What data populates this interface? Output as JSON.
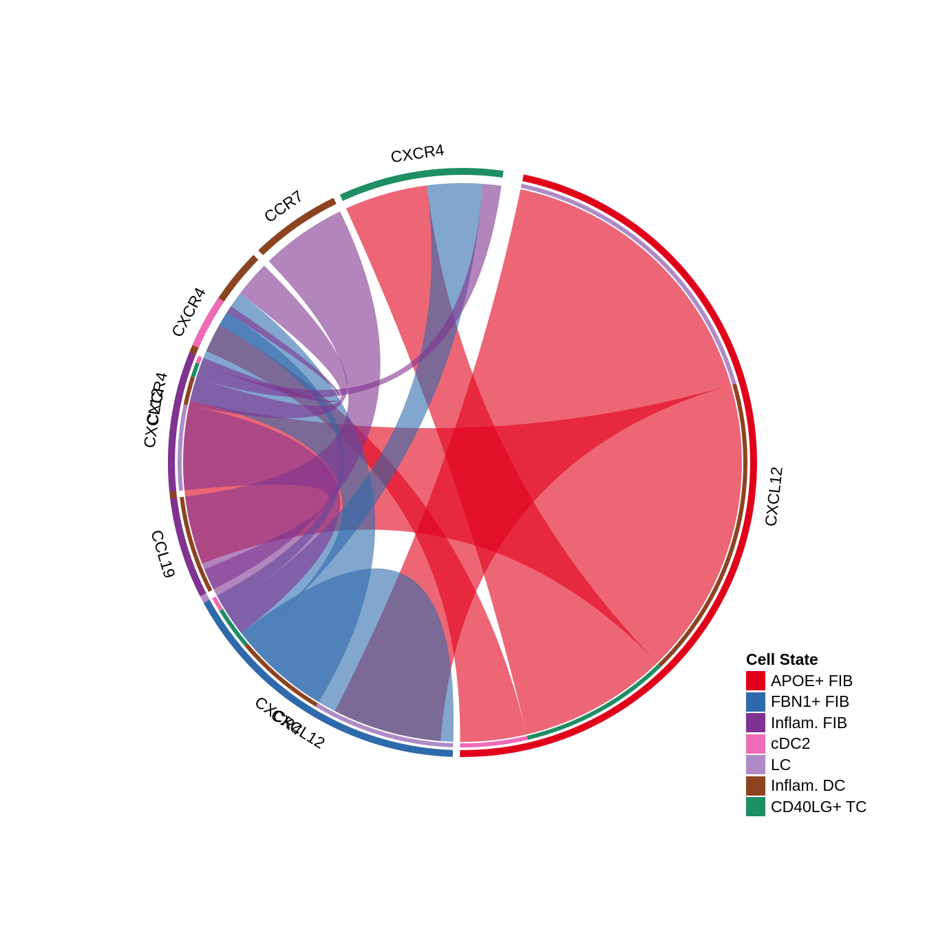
{
  "chart_data": {
    "type": "chord",
    "title": "",
    "legend": {
      "title": "Cell State",
      "placement": "bottom-right",
      "entries": [
        {
          "name": "APOE+ FIB",
          "color": "#E1001A"
        },
        {
          "name": "FBN1+ FIB",
          "color": "#2E6AAB"
        },
        {
          "name": "Inflam. FIB",
          "color": "#7F3390"
        },
        {
          "name": "cDC2",
          "color": "#F06BB5"
        },
        {
          "name": "LC",
          "color": "#AE8BC6"
        },
        {
          "name": "Inflam. DC",
          "color": "#8C4420"
        },
        {
          "name": "CD40LG+ TC",
          "color": "#1E8E63"
        }
      ]
    },
    "sectors": [
      {
        "id": "lc_cxcr4",
        "label": "CXCR4",
        "cell_state": "LC",
        "start_deg": 94.5,
        "end_deg": 157.5
      },
      {
        "id": "dc_cxcr4",
        "label": "CXCR4",
        "cell_state": "Inflam. DC",
        "start_deg": 158.8,
        "end_deg": 224.8
      },
      {
        "id": "dc_ccr7",
        "label": "CCR7",
        "cell_state": "Inflam. DC",
        "start_deg": 226.1,
        "end_deg": 244.0
      },
      {
        "id": "tc_cxcr4",
        "label": "CXCR4",
        "cell_state": "CD40LG+ TC",
        "start_deg": 245.4,
        "end_deg": 278.0
      },
      {
        "id": "apoe_cxcl12",
        "label": "CXCL12",
        "cell_state": "APOE+ FIB",
        "start_deg": 282.0,
        "end_deg": 450.5
      },
      {
        "id": "fbn1_cxcl12",
        "label": "CXCL12",
        "cell_state": "FBN1+ FIB",
        "start_deg": 451.9,
        "end_deg": 511.5
      },
      {
        "id": "inflam_ccl19",
        "label": "CCL19",
        "cell_state": "Inflam. FIB",
        "start_deg": 513.0,
        "end_deg": 533.0
      },
      {
        "id": "inflam_cxcl12",
        "label": "CXCL12",
        "cell_state": "Inflam. FIB",
        "start_deg": 534.3,
        "end_deg": 562.0
      },
      {
        "id": "cdc2_cxcr4",
        "label": "CXCR4",
        "cell_state": "cDC2",
        "start_deg": 563.5,
        "end_deg": 574.0
      }
    ],
    "links": [
      {
        "from": "apoe_cxcl12",
        "to": "lc_cxcr4",
        "source": "APOE+ FIB",
        "target": "LC",
        "weight": 0.09
      },
      {
        "from": "apoe_cxcl12",
        "to": "dc_cxcr4",
        "source": "APOE+ FIB",
        "target": "Inflam. DC",
        "weight": 0.09
      },
      {
        "from": "apoe_cxcl12",
        "to": "tc_cxcr4",
        "source": "APOE+ FIB",
        "target": "CD40LG+ TC",
        "weight": 0.045
      },
      {
        "from": "apoe_cxcl12",
        "to": "cdc2_cxcr4",
        "source": "APOE+ FIB",
        "target": "cDC2",
        "weight": 0.02
      },
      {
        "from": "fbn1_cxcl12",
        "to": "lc_cxcr4",
        "source": "FBN1+ FIB",
        "target": "LC",
        "weight": 0.1
      },
      {
        "from": "fbn1_cxcl12",
        "to": "dc_cxcr4",
        "source": "FBN1+ FIB",
        "target": "Inflam. DC",
        "weight": 0.065
      },
      {
        "from": "fbn1_cxcl12",
        "to": "tc_cxcr4",
        "source": "FBN1+ FIB",
        "target": "CD40LG+ TC",
        "weight": 0.03
      },
      {
        "from": "fbn1_cxcl12",
        "to": "cdc2_cxcr4",
        "source": "FBN1+ FIB",
        "target": "cDC2",
        "weight": 0.01
      },
      {
        "from": "inflam_cxcl12",
        "to": "lc_cxcr4",
        "source": "Inflam. FIB",
        "target": "LC",
        "weight": 0.06
      },
      {
        "from": "inflam_cxcl12",
        "to": "dc_cxcr4",
        "source": "Inflam. FIB",
        "target": "Inflam. DC",
        "weight": 0.02
      },
      {
        "from": "inflam_cxcl12",
        "to": "tc_cxcr4",
        "source": "Inflam. FIB",
        "target": "CD40LG+ TC",
        "weight": 0.01
      },
      {
        "from": "inflam_cxcl12",
        "to": "cdc2_cxcr4",
        "source": "Inflam. FIB",
        "target": "cDC2",
        "weight": 0.005
      },
      {
        "from": "inflam_ccl19",
        "to": "dc_ccr7",
        "source": "Inflam. FIB",
        "target": "Inflam. DC",
        "weight": 0.05
      }
    ]
  }
}
